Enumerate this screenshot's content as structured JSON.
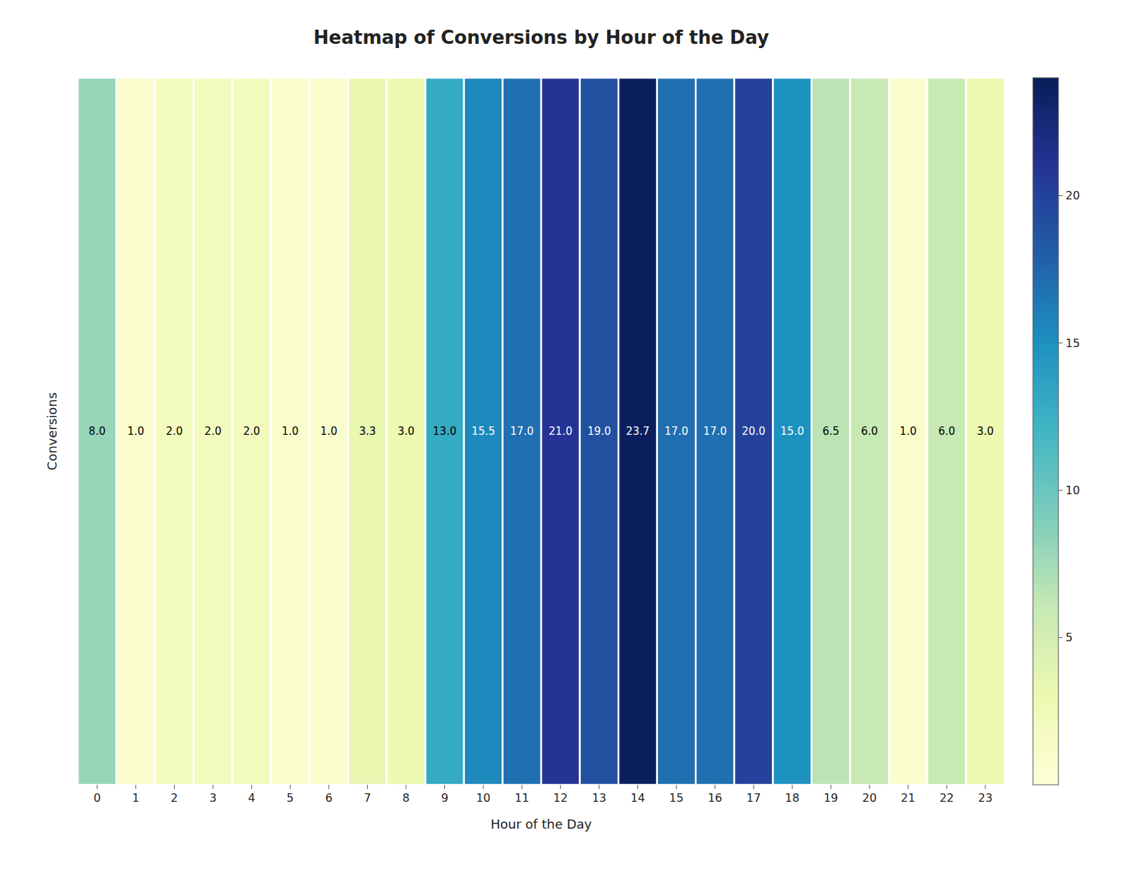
{
  "chart_data": {
    "type": "heatmap",
    "title": "Heatmap of Conversions by Hour of the Day",
    "xlabel": "Hour of the Day",
    "ylabel": "Conversions",
    "categories": [
      0,
      1,
      2,
      3,
      4,
      5,
      6,
      7,
      8,
      9,
      10,
      11,
      12,
      13,
      14,
      15,
      16,
      17,
      18,
      19,
      20,
      21,
      22,
      23
    ],
    "values": [
      8.0,
      1.0,
      2.0,
      2.0,
      2.0,
      1.0,
      1.0,
      3.3,
      3.0,
      13.0,
      15.5,
      17.0,
      21.0,
      19.0,
      23.7,
      17.0,
      17.0,
      20.0,
      15.0,
      6.5,
      6.0,
      1.0,
      6.0,
      3.0
    ],
    "value_labels": [
      "8.0",
      "1.0",
      "2.0",
      "2.0",
      "2.0",
      "1.0",
      "1.0",
      "3.3",
      "3.0",
      "13.0",
      "15.5",
      "17.0",
      "21.0",
      "19.0",
      "23.7",
      "17.0",
      "17.0",
      "20.0",
      "15.0",
      "6.5",
      "6.0",
      "1.0",
      "6.0",
      "3.0"
    ],
    "data_labels": true,
    "color": "YlGnBu",
    "colorbar_range": [
      0,
      24
    ],
    "colorbar_ticks": [
      5,
      10,
      15,
      20
    ]
  }
}
